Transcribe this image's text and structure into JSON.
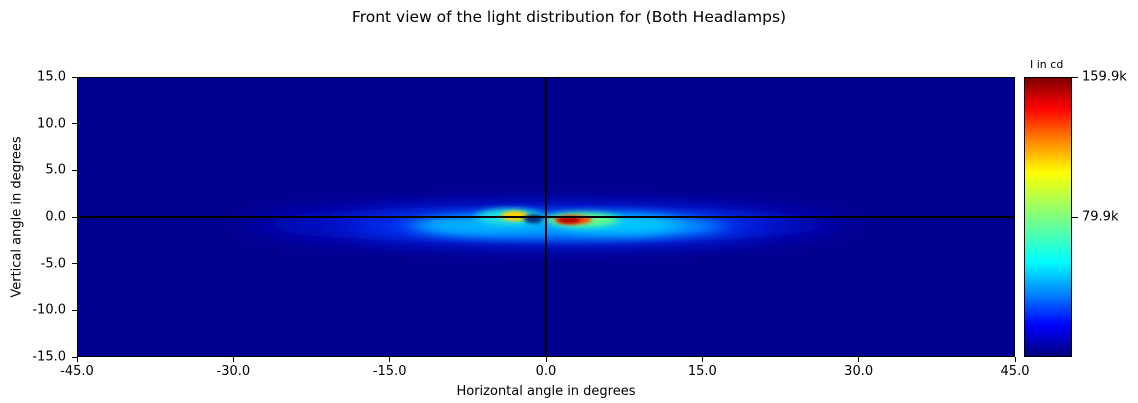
{
  "chart_data": {
    "type": "heatmap",
    "title": "Front view of the light distribution for (Both Headlamps)",
    "xlabel": "Horizontal angle in degrees",
    "ylabel": "Vertical angle in degrees",
    "xlim": [
      -45.0,
      45.0
    ],
    "ylim": [
      -15.0,
      15.0
    ],
    "x_ticks": [
      "-45.0",
      "-30.0",
      "-15.0",
      "0.0",
      "15.0",
      "30.0",
      "45.0"
    ],
    "y_ticks": [
      "15.0",
      "10.0",
      "5.0",
      "0.0",
      "-5.0",
      "-10.0",
      "-15.0"
    ],
    "colormap": "jet",
    "colorbar": {
      "label": "I in cd",
      "min": 0,
      "max": 159900,
      "tick_labels": [
        "159.9k",
        "79.9k"
      ],
      "tick_values": [
        159900,
        79900
      ]
    },
    "reference_lines": [
      {
        "orientation": "horizontal",
        "value": 0.0,
        "color": "#000000"
      },
      {
        "orientation": "vertical",
        "value": 0.0,
        "color": "#000000"
      }
    ],
    "hotspots": [
      {
        "h": 2.5,
        "v": -0.3,
        "intensity": 159900
      },
      {
        "h": -3.0,
        "v": 0.1,
        "intensity": 85000
      }
    ]
  }
}
